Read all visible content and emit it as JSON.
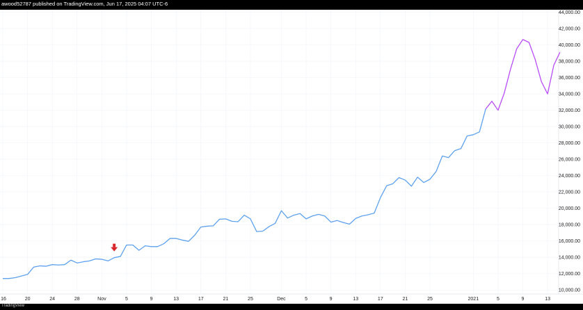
{
  "header": {
    "publish_line": "awood52787 published on TradingView.com, Jun 17, 2025 04:07 UTC-6"
  },
  "footer": {
    "logo_text": "TradingView"
  },
  "colors": {
    "background": "#ffffff",
    "frame": "#000000",
    "series_primary": "#5ea1ee",
    "series_highlight": "#b84cf5",
    "marker": "#d8262b",
    "grid": "#f0f3f9"
  },
  "chart_data": {
    "type": "line",
    "title": "",
    "xlabel": "",
    "ylabel": "",
    "grid": true,
    "ylim": [
      9500,
      44300
    ],
    "y_ticks": [
      "10,000.00",
      "12,000.00",
      "14,000.00",
      "16,000.00",
      "18,000.00",
      "20,000.00",
      "22,000.00",
      "24,000.00",
      "26,000.00",
      "28,000.00",
      "30,000.00",
      "32,000.00",
      "34,000.00",
      "36,000.00",
      "38,000.00",
      "40,000.00",
      "42,000.00",
      "44,000.00"
    ],
    "x_ticks": [
      {
        "label": "16",
        "i": 0
      },
      {
        "label": "20",
        "i": 4
      },
      {
        "label": "24",
        "i": 8
      },
      {
        "label": "28",
        "i": 12
      },
      {
        "label": "Nov",
        "i": 16
      },
      {
        "label": "5",
        "i": 20
      },
      {
        "label": "9",
        "i": 24
      },
      {
        "label": "13",
        "i": 28
      },
      {
        "label": "17",
        "i": 32
      },
      {
        "label": "21",
        "i": 36
      },
      {
        "label": "25",
        "i": 40
      },
      {
        "label": "Dec",
        "i": 45
      },
      {
        "label": "5",
        "i": 49
      },
      {
        "label": "9",
        "i": 53
      },
      {
        "label": "13",
        "i": 57
      },
      {
        "label": "17",
        "i": 61
      },
      {
        "label": "21",
        "i": 65
      },
      {
        "label": "25",
        "i": 69
      },
      {
        "label": "2021",
        "i": 76
      },
      {
        "label": "5",
        "i": 80
      },
      {
        "label": "9",
        "i": 84
      },
      {
        "label": "13",
        "i": 88
      }
    ],
    "series": [
      {
        "color": "#5ea1ee",
        "values": [
          11400,
          11400,
          11500,
          11700,
          11900,
          12800,
          12950,
          12900,
          13100,
          13050,
          13100,
          13650,
          13300,
          13450,
          13550,
          13800,
          13750,
          13550,
          13950,
          14100,
          15500,
          15500,
          14850,
          15400,
          15300,
          15300,
          15650,
          16300,
          16300,
          16100,
          15950,
          16700,
          17700,
          17800,
          17850,
          18650,
          18700,
          18400,
          18350,
          19150,
          18700,
          17150,
          17200,
          17750,
          18150,
          19700,
          18800,
          19150,
          19350,
          18700,
          19050,
          19250,
          19050,
          18300,
          18500,
          18250,
          18050,
          18750,
          19050,
          19200,
          19400,
          21300,
          22750,
          23000,
          23750,
          23450,
          22700,
          23800,
          23150,
          23550,
          24500,
          26400,
          26200,
          27050,
          27300,
          28850,
          29000,
          29350,
          32150
        ]
      },
      {
        "color": "#b84cf5",
        "start_index": 78,
        "values": [
          32150,
          33100,
          32000,
          34100,
          37000,
          39500,
          40650,
          40300,
          38200,
          35500,
          34000,
          37500,
          39100
        ]
      }
    ],
    "annotations": [
      {
        "type": "arrow-down",
        "i": 18,
        "y": 15150,
        "color": "#d8262b"
      }
    ]
  }
}
